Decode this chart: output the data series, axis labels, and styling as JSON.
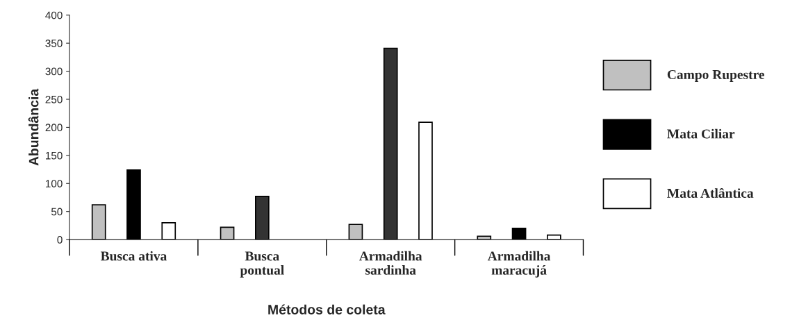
{
  "chart_data": {
    "type": "bar",
    "xlabel": "Métodos de coleta",
    "ylabel": "Abundância",
    "categories": [
      "Busca ativa",
      "Busca\npontual",
      "Armadilha\nsardinha",
      "Armadilha\nmaracujá"
    ],
    "series": [
      {
        "name": "Campo Rupestre",
        "color": "#c0c0c0",
        "values": [
          62,
          22,
          27,
          6
        ]
      },
      {
        "name": "Mata Ciliar",
        "color": "#000000",
        "colors": [
          "#000000",
          "#333333",
          "#333333",
          "#000000"
        ],
        "values": [
          124,
          77,
          341,
          20
        ]
      },
      {
        "name": "Mata Atlântica",
        "color": "#ffffff",
        "values": [
          30,
          null,
          209,
          8
        ]
      }
    ],
    "ylim": [
      0,
      400
    ],
    "yticks": [
      0,
      50,
      100,
      150,
      200,
      250,
      300,
      350,
      400
    ],
    "grid": false,
    "legend": "right"
  }
}
